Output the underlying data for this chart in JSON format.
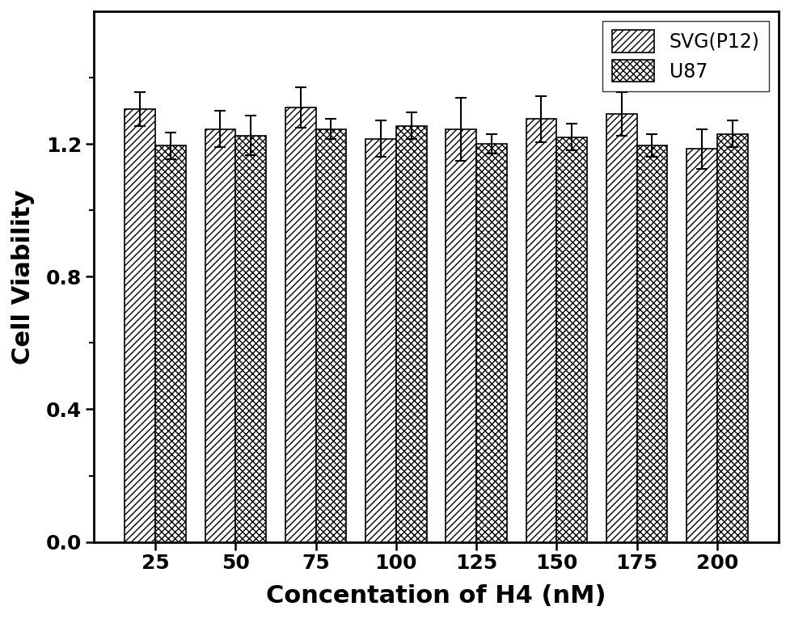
{
  "categories": [
    25,
    50,
    75,
    100,
    125,
    150,
    175,
    200
  ],
  "svg_values": [
    1.305,
    1.245,
    1.31,
    1.215,
    1.245,
    1.275,
    1.29,
    1.185
  ],
  "svg_errors": [
    0.05,
    0.055,
    0.06,
    0.055,
    0.095,
    0.07,
    0.065,
    0.06
  ],
  "u87_values": [
    1.195,
    1.225,
    1.245,
    1.255,
    1.2,
    1.22,
    1.195,
    1.23
  ],
  "u87_errors": [
    0.04,
    0.06,
    0.03,
    0.04,
    0.03,
    0.04,
    0.035,
    0.04
  ],
  "ylabel": "Cell Viability",
  "xlabel": "Concentation of H4 (nM)",
  "ylim": [
    0,
    1.6
  ],
  "yticks_major": [
    0.0,
    0.4,
    0.8,
    1.2
  ],
  "yticks_minor": [
    0.2,
    0.6,
    1.0,
    1.4
  ],
  "legend_labels": [
    "SVG(P12)",
    "U87"
  ],
  "bar_width": 0.38,
  "svg_hatch": "////",
  "u87_hatch": "xxxx",
  "edge_color": "#000000",
  "svg_facecolor": "#ffffff",
  "u87_facecolor": "#ffffff",
  "label_fontsize": 22,
  "tick_fontsize": 18,
  "legend_fontsize": 17
}
